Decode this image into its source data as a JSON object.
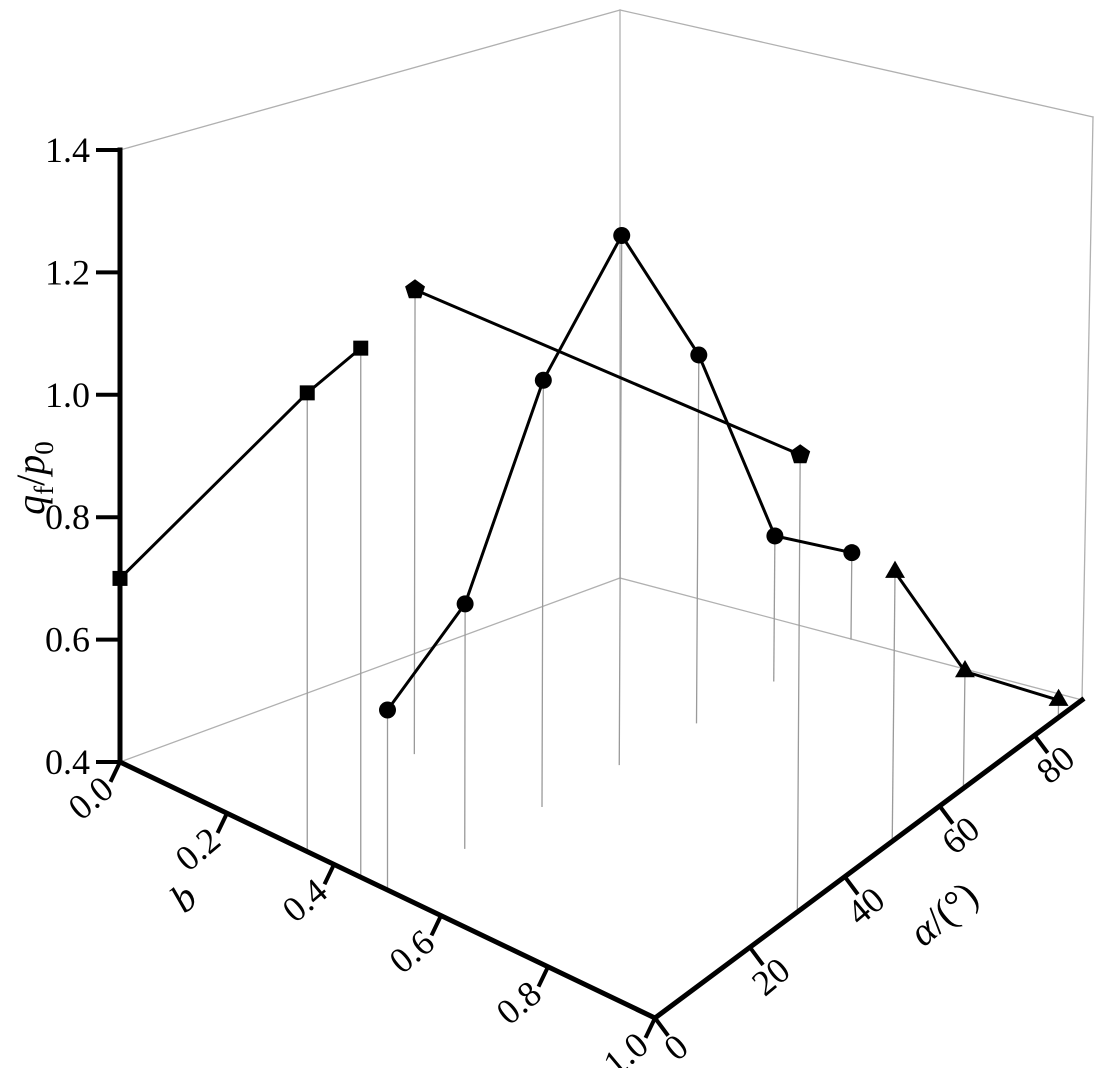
{
  "chart_data": {
    "type": "scatter",
    "projection": "3d",
    "title": "",
    "xlabel": "b",
    "ylabel": "α/(°)",
    "zlabel": "qf/p0",
    "xlabel_rich": [
      {
        "t": "b",
        "italic": true
      }
    ],
    "ylabel_rich": [
      {
        "t": "α",
        "italic": true
      },
      {
        "t": "/(°)"
      }
    ],
    "zlabel_rich": [
      {
        "t": "q",
        "italic": true
      },
      {
        "t": "f",
        "sub": true
      },
      {
        "t": "/"
      },
      {
        "t": "p",
        "italic": true
      },
      {
        "t": "0",
        "sub": true
      }
    ],
    "xlim": [
      0,
      1
    ],
    "ylim": [
      0,
      90
    ],
    "zlim": [
      0.4,
      1.4
    ],
    "xticks": [
      "0.0",
      "0.2",
      "0.4",
      "0.6",
      "0.8",
      "1.0"
    ],
    "yticks": [
      "0",
      "20",
      "40",
      "60",
      "80"
    ],
    "zticks": [
      "0.4",
      "0.6",
      "0.8",
      "1.0",
      "1.2",
      "1.4"
    ],
    "legend_position": "none",
    "grid": "box-frame",
    "drop_lines": true,
    "point_format": [
      "b",
      "alpha",
      "q"
    ],
    "series": [
      {
        "name": "squares",
        "marker": "square",
        "points": [
          [
            0.0,
            0,
            0.7
          ],
          [
            0.35,
            0,
            1.16
          ],
          [
            0.45,
            0,
            1.28
          ]
        ]
      },
      {
        "name": "circles",
        "marker": "circle",
        "points": [
          [
            0.5,
            0,
            0.7
          ],
          [
            0.5,
            15,
            0.81
          ],
          [
            0.5,
            30,
            1.12
          ],
          [
            0.5,
            45,
            1.3
          ],
          [
            0.5,
            60,
            1.03
          ],
          [
            0.5,
            75,
            0.65
          ],
          [
            0.5,
            90,
            0.55
          ]
        ]
      },
      {
        "name": "pentagons",
        "marker": "pentagon",
        "points": [
          [
            0.25,
            30,
            1.18
          ],
          [
            1.0,
            30,
            1.18
          ]
        ]
      },
      {
        "name": "triangles",
        "marker": "triangle",
        "points": [
          [
            1.0,
            50,
            0.86
          ],
          [
            1.0,
            65,
            0.6
          ],
          [
            1.0,
            85,
            0.43
          ]
        ]
      }
    ],
    "colors": {
      "series": "#000000",
      "axis": "#000000",
      "box": "#b0b0b0",
      "drop_line": "#9a9a9a",
      "background": "#ffffff"
    }
  }
}
